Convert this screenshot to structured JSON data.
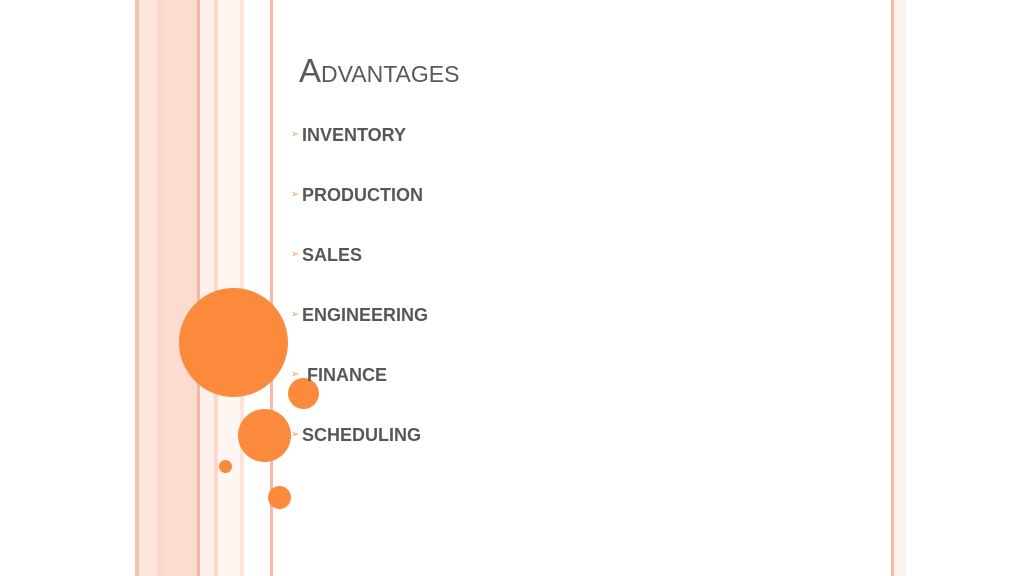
{
  "slide": {
    "title": "Advantages",
    "bullets": [
      {
        "label": "INVENTORY"
      },
      {
        "label": "PRODUCTION"
      },
      {
        "label": "SALES"
      },
      {
        "label": "ENGINEERING"
      },
      {
        "label": "FINANCE"
      },
      {
        "label": "SCHEDULING"
      }
    ],
    "bullet_icon": "arrowhead-icon",
    "colors": {
      "accent": "#fb8a3c",
      "stripe": "#fcdcd0",
      "text": "#575757"
    }
  }
}
